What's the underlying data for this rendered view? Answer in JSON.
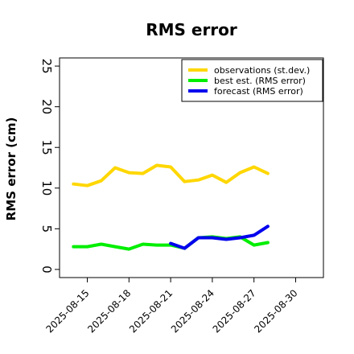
{
  "chart_data": {
    "type": "line",
    "title": "RMS error",
    "xlabel": "",
    "ylabel": "RMS error (cm)",
    "ylim": [
      -1,
      26
    ],
    "xlim": [
      "2025-08-13",
      "2025-09-01"
    ],
    "yticks": [
      0,
      5,
      10,
      15,
      20,
      25
    ],
    "grid": false,
    "legend_position": "top-right",
    "xticks": [
      {
        "label": "2025-08-15",
        "color": "#000000"
      },
      {
        "label": "2025-08-18",
        "color": "#000000"
      },
      {
        "label": "2025-08-21",
        "color": "#2a8c2a"
      },
      {
        "label": "2025-08-24",
        "color": "#000000"
      },
      {
        "label": "2025-08-27",
        "color": "#000000"
      },
      {
        "label": "2025-08-30",
        "color": "#000000"
      }
    ],
    "series": [
      {
        "name": "observations (st.dev.)",
        "color": "#ffd700",
        "x": [
          "2025-08-14",
          "2025-08-15",
          "2025-08-16",
          "2025-08-17",
          "2025-08-18",
          "2025-08-19",
          "2025-08-20",
          "2025-08-21",
          "2025-08-22",
          "2025-08-23",
          "2025-08-24",
          "2025-08-25",
          "2025-08-26",
          "2025-08-27",
          "2025-08-28"
        ],
        "values": [
          10.5,
          10.3,
          10.9,
          12.5,
          11.9,
          11.8,
          12.8,
          12.6,
          10.8,
          11.0,
          11.6,
          10.7,
          11.9,
          12.6,
          11.8
        ]
      },
      {
        "name": "best est. (RMS error)",
        "color": "#00ee00",
        "x": [
          "2025-08-14",
          "2025-08-15",
          "2025-08-16",
          "2025-08-17",
          "2025-08-18",
          "2025-08-19",
          "2025-08-20",
          "2025-08-21",
          "2025-08-22",
          "2025-08-23",
          "2025-08-24",
          "2025-08-25",
          "2025-08-26",
          "2025-08-27",
          "2025-08-28"
        ],
        "values": [
          2.8,
          2.8,
          3.1,
          2.8,
          2.5,
          3.1,
          3.0,
          3.0,
          2.6,
          3.9,
          4.0,
          3.8,
          4.0,
          3.0,
          3.3
        ]
      },
      {
        "name": "forecast (RMS error)",
        "color": "#0000ee",
        "x": [
          "2025-08-21",
          "2025-08-22",
          "2025-08-23",
          "2025-08-24",
          "2025-08-25",
          "2025-08-26",
          "2025-08-27",
          "2025-08-28"
        ],
        "values": [
          3.2,
          2.6,
          3.9,
          3.9,
          3.7,
          3.9,
          4.2,
          5.3
        ]
      }
    ]
  }
}
